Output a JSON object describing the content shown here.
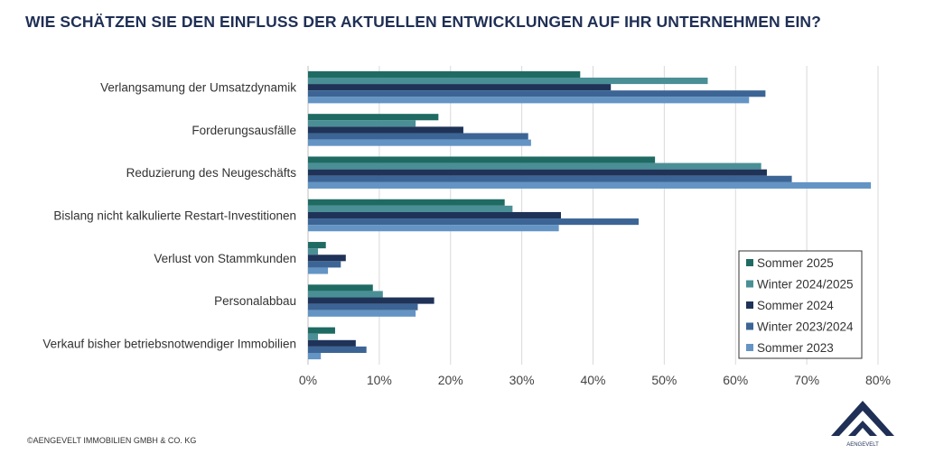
{
  "title": "WIE SCHÄTZEN SIE DEN EINFLUSS DER AKTUELLEN ENTWICKLUNGEN AUF IHR UNTERNEHMEN EIN?",
  "footer": "©AENGEVELT IMMOBILIEN GMBH & CO. KG",
  "logo_text": "AENGEVELT",
  "chart_data": {
    "type": "bar",
    "orientation": "horizontal",
    "categories": [
      "Verlangsamung der Umsatzdynamik",
      "Forderungsausfälle",
      "Reduzierung des Neugeschäfts",
      "Bislang nicht kalkulierte Restart-Investitionen",
      "Verlust von Stammkunden",
      "Personalabbau",
      "Verkauf bisher betriebsnotwendiger Immobilien"
    ],
    "series": [
      {
        "name": "Sommer 2025",
        "color": "#1f6b63",
        "values": [
          38.2,
          18.3,
          48.7,
          27.6,
          2.5,
          9.1,
          3.8
        ]
      },
      {
        "name": "Winter 2024/2025",
        "color": "#4a8f96",
        "values": [
          56.1,
          15.1,
          63.6,
          28.7,
          1.4,
          10.5,
          1.4
        ]
      },
      {
        "name": "Sommer 2024",
        "color": "#1f3358",
        "values": [
          42.5,
          21.8,
          64.4,
          35.5,
          5.3,
          17.7,
          6.7
        ]
      },
      {
        "name": "Winter 2023/2024",
        "color": "#3c6595",
        "values": [
          64.2,
          30.9,
          67.9,
          46.4,
          4.6,
          15.4,
          8.2
        ]
      },
      {
        "name": "Sommer 2023",
        "color": "#6494c4",
        "values": [
          61.9,
          31.3,
          79.0,
          35.2,
          2.8,
          15.1,
          1.8
        ]
      }
    ],
    "xlim": [
      0,
      80
    ],
    "xticks": [
      "0%",
      "10%",
      "20%",
      "30%",
      "40%",
      "50%",
      "60%",
      "70%",
      "80%"
    ],
    "unit": "%",
    "grid": "vertical",
    "legend": "bottom-right"
  }
}
